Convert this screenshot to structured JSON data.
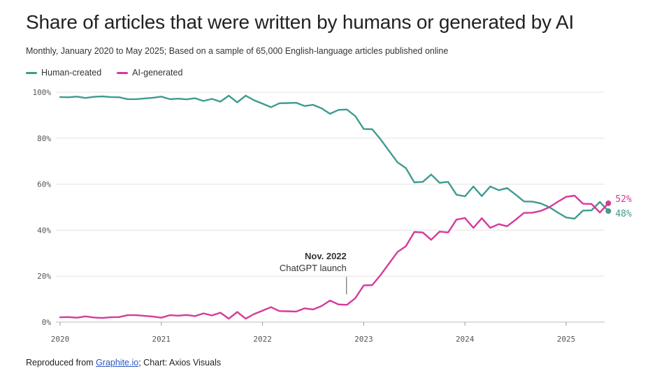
{
  "header": {
    "title": "Share of articles that were written by humans or generated by AI",
    "subtitle": "Monthly, January 2020 to May 2025; Based on a sample of 65,000 English-language articles published online"
  },
  "footer": {
    "prefix": "Reproduced from ",
    "link_text": "Graphite.io",
    "suffix": "; Chart: Axios Visuals"
  },
  "colors": {
    "human": "#3e9b8f",
    "ai": "#d6399b",
    "grid": "#e3e3e3"
  },
  "chart_data": {
    "type": "line",
    "title": "Share of articles that were written by humans or generated by AI",
    "xlabel": "",
    "ylabel": "",
    "x_ticks": [
      {
        "value": 2020,
        "label": "2020"
      },
      {
        "value": 2021,
        "label": "2021"
      },
      {
        "value": 2022,
        "label": "2022"
      },
      {
        "value": 2023,
        "label": "2023"
      },
      {
        "value": 2024,
        "label": "2024"
      },
      {
        "value": 2025,
        "label": "2025"
      }
    ],
    "y_ticks": [
      {
        "value": 0,
        "label": "0%"
      },
      {
        "value": 20,
        "label": "20%"
      },
      {
        "value": 40,
        "label": "40%"
      },
      {
        "value": 60,
        "label": "60%"
      },
      {
        "value": 80,
        "label": "80%"
      },
      {
        "value": 100,
        "label": "100%"
      }
    ],
    "xlim": [
      2020,
      2025.33
    ],
    "ylim": [
      0,
      100
    ],
    "legend": "top-left",
    "series": [
      {
        "name": "Human-created",
        "key": "human",
        "end_label": "48%",
        "values": [
          97.9,
          97.8,
          98.1,
          97.5,
          98.0,
          98.2,
          97.9,
          97.8,
          97.0,
          97.0,
          97.3,
          97.6,
          98.1,
          97.0,
          97.2,
          96.9,
          97.4,
          96.2,
          97.1,
          95.9,
          98.5,
          95.6,
          98.5,
          96.5,
          95.0,
          93.5,
          95.2,
          95.3,
          95.4,
          94.0,
          94.5,
          93.0,
          90.6,
          92.3,
          92.5,
          89.6,
          84.0,
          83.9,
          79.5,
          74.5,
          69.5,
          67.0,
          60.8,
          61.0,
          64.2,
          60.6,
          61.0,
          55.4,
          54.7,
          59.0,
          54.8,
          59.0,
          57.4,
          58.3,
          55.5,
          52.5,
          52.4,
          51.6,
          50.0,
          47.7,
          45.5,
          45.0,
          48.5,
          48.6,
          52.3,
          48.3
        ]
      },
      {
        "name": "AI-generated",
        "key": "ai",
        "end_label": "52%",
        "values": [
          2.1,
          2.2,
          1.9,
          2.5,
          2.0,
          1.8,
          2.1,
          2.2,
          3.0,
          3.0,
          2.7,
          2.4,
          1.9,
          3.0,
          2.8,
          3.1,
          2.6,
          3.8,
          2.9,
          4.1,
          1.5,
          4.4,
          1.5,
          3.5,
          5.0,
          6.5,
          4.8,
          4.7,
          4.6,
          6.0,
          5.5,
          7.0,
          9.4,
          7.7,
          7.5,
          10.4,
          16.0,
          16.1,
          20.5,
          25.5,
          30.5,
          33.0,
          39.2,
          39.0,
          35.8,
          39.4,
          39.0,
          44.6,
          45.3,
          41.0,
          45.2,
          41.0,
          42.6,
          41.7,
          44.5,
          47.5,
          47.6,
          48.4,
          50.0,
          52.3,
          54.5,
          55.0,
          51.5,
          51.4,
          47.7,
          51.7
        ]
      }
    ],
    "annotations": [
      {
        "x": 2022.83,
        "y": 20,
        "title": "Nov. 2022",
        "text": "ChatGPT launch"
      }
    ]
  }
}
